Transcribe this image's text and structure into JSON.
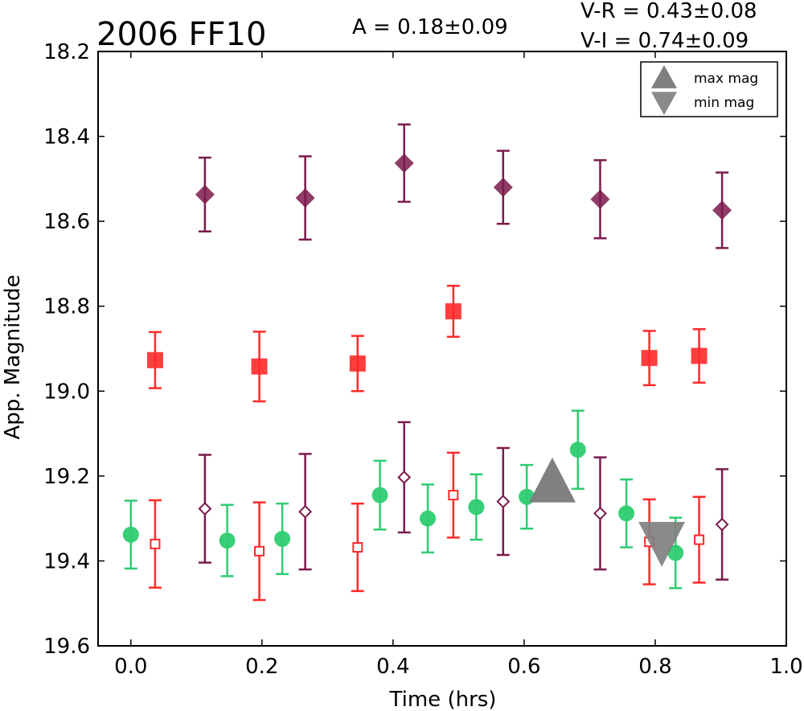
{
  "chart_data": {
    "type": "scatter",
    "title": "2006 FF10",
    "annotations": {
      "amplitude": "A  = 0.18±0.09",
      "v_r": "V-R = 0.43±0.08",
      "v_i": "V-I  = 0.74±0.09"
    },
    "xlabel": "Time (hrs)",
    "ylabel": "App. Magnitude",
    "xlim": [
      -0.05,
      1.0
    ],
    "ylim": [
      19.6,
      18.2
    ],
    "y_inverted": true,
    "x_ticks": [
      "0.0",
      "0.2",
      "0.4",
      "0.6",
      "0.8",
      "1.0"
    ],
    "y_ticks": [
      "18.2",
      "18.4",
      "18.6",
      "18.8",
      "19.0",
      "19.2",
      "19.4",
      "19.6"
    ],
    "grid": false,
    "legend_position": "top-right",
    "legend": [
      {
        "label": "max mag",
        "marker": "triangle-up",
        "color": "#808080"
      },
      {
        "label": "min mag",
        "marker": "triangle-down",
        "color": "#808080"
      }
    ],
    "series": [
      {
        "marker": "diamond-filled",
        "color": "#7b1a4b",
        "points": [
          {
            "x": 0.113,
            "y": 18.537,
            "err": 0.087
          },
          {
            "x": 0.266,
            "y": 18.545,
            "err": 0.098
          },
          {
            "x": 0.417,
            "y": 18.463,
            "err": 0.091
          },
          {
            "x": 0.568,
            "y": 18.52,
            "err": 0.086
          },
          {
            "x": 0.716,
            "y": 18.548,
            "err": 0.092
          },
          {
            "x": 0.902,
            "y": 18.574,
            "err": 0.089
          }
        ]
      },
      {
        "marker": "square-filled",
        "color": "#ff2a2a",
        "points": [
          {
            "x": 0.037,
            "y": 18.927,
            "err": 0.066
          },
          {
            "x": 0.196,
            "y": 18.942,
            "err": 0.082
          },
          {
            "x": 0.346,
            "y": 18.935,
            "err": 0.065
          },
          {
            "x": 0.492,
            "y": 18.812,
            "err": 0.06
          },
          {
            "x": 0.791,
            "y": 18.922,
            "err": 0.064
          },
          {
            "x": 0.867,
            "y": 18.917,
            "err": 0.063
          }
        ]
      },
      {
        "marker": "circle-filled",
        "color": "#2ecc71",
        "points": [
          {
            "x": 0.0,
            "y": 19.338,
            "err": 0.08
          },
          {
            "x": 0.147,
            "y": 19.352,
            "err": 0.084
          },
          {
            "x": 0.231,
            "y": 19.348,
            "err": 0.083
          },
          {
            "x": 0.38,
            "y": 19.245,
            "err": 0.081
          },
          {
            "x": 0.453,
            "y": 19.3,
            "err": 0.08
          },
          {
            "x": 0.527,
            "y": 19.273,
            "err": 0.077
          },
          {
            "x": 0.604,
            "y": 19.249,
            "err": 0.075
          },
          {
            "x": 0.682,
            "y": 19.138,
            "err": 0.092
          },
          {
            "x": 0.756,
            "y": 19.288,
            "err": 0.08
          },
          {
            "x": 0.831,
            "y": 19.381,
            "err": 0.083
          }
        ]
      },
      {
        "marker": "square-open",
        "color": "#ff2a2a",
        "points": [
          {
            "x": 0.037,
            "y": 19.36,
            "err": 0.103
          },
          {
            "x": 0.196,
            "y": 19.377,
            "err": 0.115
          },
          {
            "x": 0.346,
            "y": 19.368,
            "err": 0.103
          },
          {
            "x": 0.492,
            "y": 19.245,
            "err": 0.1
          },
          {
            "x": 0.791,
            "y": 19.355,
            "err": 0.1
          },
          {
            "x": 0.867,
            "y": 19.35,
            "err": 0.101
          }
        ]
      },
      {
        "marker": "diamond-open",
        "color": "#7b1a4b",
        "points": [
          {
            "x": 0.113,
            "y": 19.277,
            "err": 0.127
          },
          {
            "x": 0.266,
            "y": 19.284,
            "err": 0.136
          },
          {
            "x": 0.417,
            "y": 19.203,
            "err": 0.13
          },
          {
            "x": 0.568,
            "y": 19.26,
            "err": 0.126
          },
          {
            "x": 0.716,
            "y": 19.288,
            "err": 0.132
          },
          {
            "x": 0.902,
            "y": 19.314,
            "err": 0.13
          }
        ]
      },
      {
        "name": "max mag",
        "marker": "triangle-up",
        "color": "#808080",
        "points": [
          {
            "x": 0.643,
            "y": 19.215
          }
        ]
      },
      {
        "name": "min mag",
        "marker": "triangle-down",
        "color": "#808080",
        "points": [
          {
            "x": 0.81,
            "y": 19.355
          }
        ]
      }
    ]
  }
}
